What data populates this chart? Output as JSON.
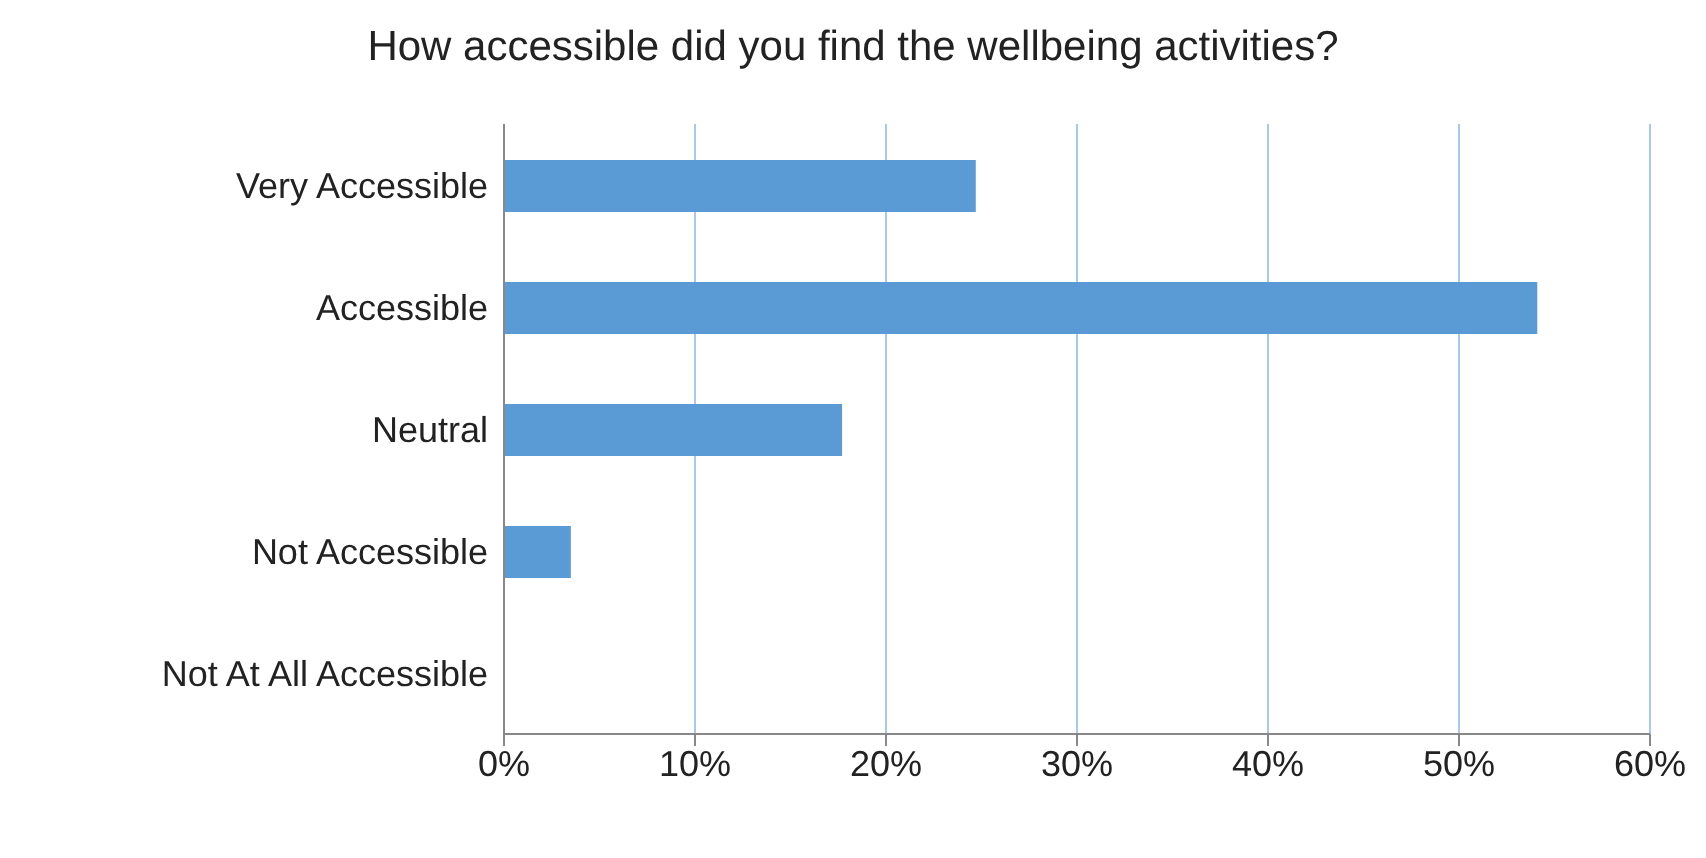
{
  "chart_data": {
    "type": "bar",
    "orientation": "horizontal",
    "title": "How accessible did you find the wellbeing activities?",
    "categories": [
      "Very Accessible",
      "Accessible",
      "Neutral",
      "Not Accessible",
      "Not At All Accessible"
    ],
    "values": [
      24.7,
      54.1,
      17.7,
      3.5,
      0
    ],
    "color": "#5b9bd5",
    "xlim": [
      0,
      60
    ],
    "xticks": [
      {
        "value": 0,
        "label": "0%"
      },
      {
        "value": 10,
        "label": "10%"
      },
      {
        "value": 20,
        "label": "20%"
      },
      {
        "value": 30,
        "label": "30%"
      },
      {
        "value": 40,
        "label": "40%"
      },
      {
        "value": 50,
        "label": "50%"
      },
      {
        "value": 60,
        "label": "60%"
      }
    ],
    "grid": "x"
  }
}
